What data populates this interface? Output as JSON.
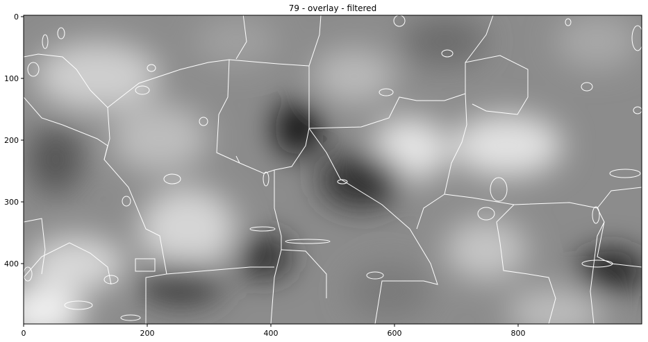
{
  "figure": {
    "title": "79 - overlay - filtered",
    "image_kind": "grayscale smoothed field with white segmentation boundary overlay",
    "colormap": "gray",
    "x_ticks": [
      "0",
      "200",
      "400",
      "600",
      "800"
    ],
    "y_ticks": [
      "0",
      "100",
      "200",
      "300",
      "400"
    ],
    "x_range": [
      0,
      1000
    ],
    "y_range": [
      0,
      500
    ],
    "overlay_color": "#ffffff"
  }
}
